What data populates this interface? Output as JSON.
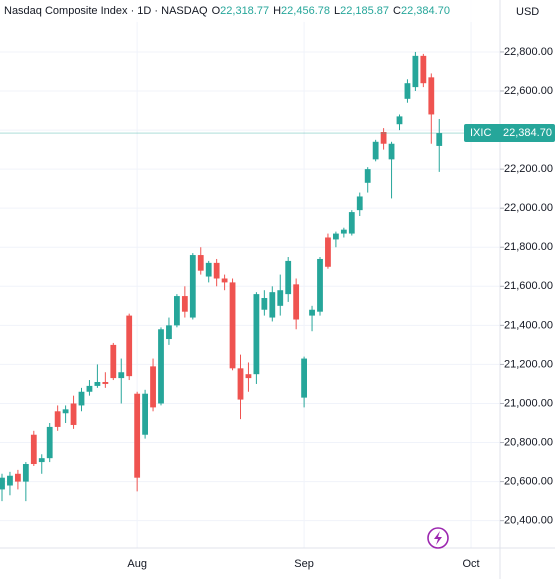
{
  "chart_data": {
    "type": "candlestick",
    "title": "Nasdaq Composite Index · 1D · NASDAQ",
    "legend_ohlc": [
      {
        "key": "O",
        "label": "22,318.77"
      },
      {
        "key": "H",
        "label": "22,456.78"
      },
      {
        "key": "L",
        "label": "22,185.87"
      },
      {
        "key": "C",
        "label": "22,384.70"
      }
    ],
    "currency": "USD",
    "last_price": {
      "symbol": "IXIC",
      "label": "22,384.70"
    },
    "up_color": "#26a69a",
    "down_color": "#ef5350",
    "grid": true,
    "categories": [
      null,
      null,
      null,
      null,
      null,
      null,
      null,
      null,
      null,
      null,
      null,
      null,
      null,
      null,
      null,
      null,
      null,
      "Aug",
      null,
      null,
      null,
      null,
      null,
      null,
      null,
      null,
      null,
      null,
      null,
      null,
      null,
      null,
      null,
      null,
      null,
      null,
      null,
      null,
      "Sep",
      null,
      null,
      null,
      null,
      null,
      null,
      null,
      null,
      null,
      null,
      null,
      null,
      null,
      null,
      null,
      null,
      null,
      null,
      null,
      null,
      "Oct"
    ],
    "open": [
      20560,
      20580,
      20640,
      20600,
      20840,
      20700,
      20720,
      20960,
      20950,
      21000,
      20990,
      21060,
      21090,
      21110,
      21300,
      21130,
      21450,
      21050,
      20840,
      21190,
      21000,
      21330,
      21400,
      21550,
      21440,
      21760,
      21650,
      21720,
      21640,
      21620,
      21180,
      21150,
      21150,
      21480,
      21440,
      21500,
      21560,
      21610,
      21030,
      21450,
      21470,
      21850,
      21840,
      21870,
      21870,
      21990,
      22130,
      22250,
      22390,
      22250,
      22430,
      22560,
      22620,
      22780,
      22670,
      22318.77,
      null,
      null,
      null,
      null
    ],
    "high": [
      20640,
      20650,
      20660,
      20700,
      20860,
      20740,
      20900,
      20990,
      20990,
      21040,
      21080,
      21120,
      21200,
      21160,
      21310,
      21230,
      21460,
      21060,
      21070,
      21230,
      21390,
      21440,
      21560,
      21600,
      21770,
      21800,
      21730,
      21740,
      21660,
      21640,
      21250,
      21210,
      21570,
      21580,
      21600,
      21660,
      21750,
      21640,
      21240,
      21500,
      21750,
      21870,
      21880,
      21900,
      21990,
      22080,
      22210,
      22350,
      22410,
      22340,
      22480,
      22660,
      22800,
      22790,
      22690,
      22456.78,
      null,
      null,
      null,
      null
    ],
    "low": [
      20500,
      20530,
      20560,
      20500,
      20680,
      20640,
      20700,
      20860,
      20900,
      20870,
      20960,
      21040,
      21080,
      21080,
      21120,
      21000,
      21120,
      20550,
      20820,
      20960,
      20990,
      21300,
      21390,
      21440,
      21430,
      21660,
      21620,
      21600,
      21580,
      21170,
      20920,
      21060,
      21100,
      21450,
      21420,
      21450,
      21520,
      21380,
      20980,
      21370,
      21450,
      21690,
      21800,
      21850,
      21860,
      21960,
      22080,
      22240,
      22300,
      22050,
      22400,
      22540,
      22600,
      22620,
      22330,
      22185.87,
      null,
      null,
      null,
      null
    ],
    "close": [
      20620,
      20630,
      20600,
      20690,
      20690,
      20720,
      20880,
      20880,
      20970,
      20890,
      21060,
      21090,
      21110,
      21100,
      21130,
      21160,
      21140,
      20620,
      21050,
      20980,
      21380,
      21400,
      21550,
      21470,
      21760,
      21680,
      21720,
      21640,
      21620,
      21180,
      21020,
      21130,
      21560,
      21540,
      21570,
      21580,
      21730,
      21430,
      21230,
      21480,
      21740,
      21700,
      21870,
      21890,
      21980,
      22060,
      22200,
      22340,
      22330,
      22330,
      22470,
      22640,
      22780,
      22640,
      22480,
      22384.7,
      null,
      null,
      null,
      null
    ],
    "ylim": [
      20260,
      23066
    ],
    "yticks": [
      {
        "value": 20400,
        "label": "20,400.00"
      },
      {
        "value": 20600,
        "label": "20,600.00"
      },
      {
        "value": 20800,
        "label": "20,800.00"
      },
      {
        "value": 21000,
        "label": "21,000.00"
      },
      {
        "value": 21200,
        "label": "21,200.00"
      },
      {
        "value": 21400,
        "label": "21,400.00"
      },
      {
        "value": 21600,
        "label": "21,600.00"
      },
      {
        "value": 21800,
        "label": "21,800.00"
      },
      {
        "value": 22000,
        "label": "22,000.00"
      },
      {
        "value": 22200,
        "label": "22,200.00"
      },
      {
        "value": 22400,
        "label": "22,400.00"
      },
      {
        "value": 22600,
        "label": "22,600.00"
      },
      {
        "value": 22800,
        "label": "22,800.00"
      }
    ]
  }
}
